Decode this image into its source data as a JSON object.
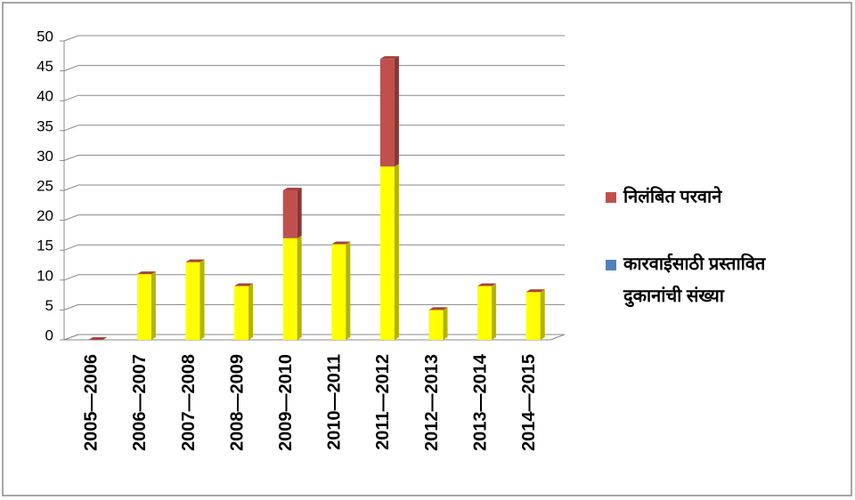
{
  "chart_data": {
    "type": "bar",
    "stacked": true,
    "three_d": true,
    "categories": [
      "2005—2006",
      "2006—2007",
      "2007—2008",
      "2008—2009",
      "2009—2010",
      "2010—2011",
      "2011—2012",
      "2012—2013",
      "2013—2014",
      "2014—2015"
    ],
    "series": [
      {
        "name": "कारवाईसाठी प्रस्तावित दुकानांची संख्या",
        "color": "#ffff00",
        "legend_color": "#4f81bd",
        "values": [
          0,
          11,
          13,
          9,
          17,
          16,
          29,
          5,
          9,
          8
        ]
      },
      {
        "name": "निलंबित परवाने",
        "color": "#c0504d",
        "legend_color": "#c0504d",
        "values": [
          0,
          0,
          0,
          0,
          8,
          0,
          18,
          0,
          0,
          0
        ]
      }
    ],
    "ylim": [
      0,
      50
    ],
    "yticks": [
      0,
      5,
      10,
      15,
      20,
      25,
      30,
      35,
      40,
      45,
      50
    ],
    "grid": true,
    "legend": "right"
  }
}
